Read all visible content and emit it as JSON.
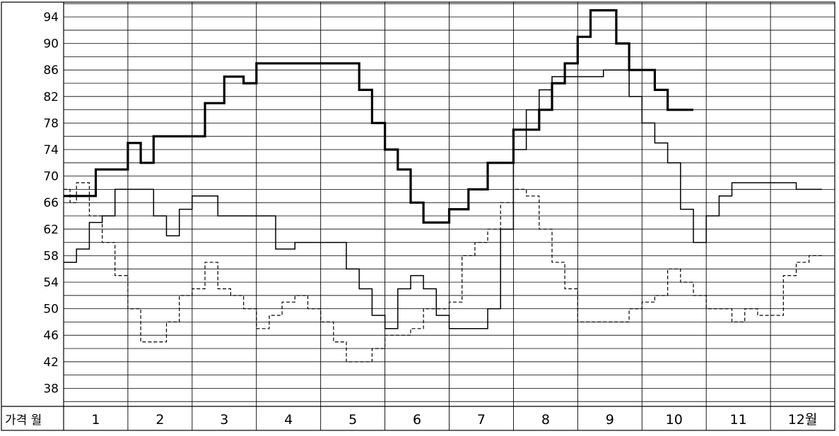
{
  "chart_data": {
    "type": "line",
    "title": "",
    "xlabel": "월",
    "ylabel": "가격",
    "corner_label": "가격 월",
    "categories": [
      "1",
      "2",
      "3",
      "4",
      "5",
      "6",
      "7",
      "8",
      "9",
      "10",
      "11",
      "12월"
    ],
    "ylim": [
      36,
      96
    ],
    "yticks": [
      38,
      42,
      46,
      50,
      54,
      58,
      62,
      66,
      70,
      74,
      78,
      82,
      86,
      90,
      94
    ],
    "grid": true,
    "line_color": "#000000",
    "series": [
      {
        "style": "thick",
        "x": [
          0.0,
          0.2,
          0.5,
          1.0,
          1.2,
          1.4,
          1.7,
          2.0,
          2.2,
          2.5,
          2.8,
          3.0,
          3.2,
          3.4,
          3.6,
          3.9,
          4.2,
          4.5,
          4.6,
          4.8,
          5.0,
          5.2,
          5.4,
          5.6,
          5.8,
          6.0,
          6.3,
          6.6,
          6.8,
          7.0,
          7.2,
          7.4,
          7.6,
          7.8,
          8.0,
          8.2,
          8.4,
          8.6,
          8.8,
          9.0,
          9.2,
          9.4,
          9.6
        ],
        "values": [
          67,
          67,
          71,
          75,
          72,
          76,
          76,
          76,
          81,
          85,
          84,
          87,
          87,
          87,
          87,
          87,
          87,
          87,
          83,
          78,
          74,
          71,
          66,
          63,
          63,
          65,
          68,
          72,
          72,
          77,
          77,
          80,
          84,
          87,
          91,
          95,
          95,
          90,
          86,
          86,
          83,
          80,
          80
        ]
      },
      {
        "style": "thin",
        "x": [
          0.0,
          0.2,
          0.4,
          0.6,
          0.8,
          1.0,
          1.2,
          1.4,
          1.6,
          1.8,
          2.0,
          2.2,
          2.4,
          2.6,
          3.0,
          3.3,
          3.6,
          3.9,
          4.2,
          4.4,
          4.6,
          4.8,
          5.0,
          5.2,
          5.4,
          5.6,
          5.8,
          6.0,
          6.3,
          6.6,
          6.8,
          7.0,
          7.2,
          7.4,
          7.6,
          7.8,
          8.0,
          8.2,
          8.4,
          8.6,
          8.8,
          9.0,
          9.2,
          9.4,
          9.6,
          9.8,
          10.0,
          10.2,
          10.4,
          10.6,
          10.8,
          11.0,
          11.2,
          11.4,
          11.6
        ],
        "values": [
          57,
          59,
          63,
          64,
          68,
          68,
          68,
          64,
          61,
          65,
          67,
          67,
          64,
          64,
          64,
          59,
          60,
          60,
          60,
          56,
          53,
          49,
          47,
          53,
          55,
          53,
          49,
          47,
          47,
          50,
          62,
          74,
          80,
          83,
          85,
          85,
          85,
          85,
          86,
          86,
          82,
          78,
          75,
          72,
          65,
          60,
          64,
          67,
          69,
          69,
          69,
          69,
          69,
          68,
          68
        ]
      },
      {
        "style": "dashed",
        "x": [
          0.0,
          0.1,
          0.2,
          0.4,
          0.6,
          0.8,
          1.0,
          1.2,
          1.4,
          1.6,
          1.8,
          2.0,
          2.2,
          2.4,
          2.6,
          2.8,
          3.0,
          3.2,
          3.4,
          3.6,
          3.8,
          4.0,
          4.2,
          4.4,
          4.6,
          4.8,
          5.0,
          5.2,
          5.4,
          5.6,
          5.8,
          6.0,
          6.2,
          6.4,
          6.6,
          6.8,
          7.0,
          7.2,
          7.4,
          7.6,
          7.8,
          8.0,
          8.2,
          8.4,
          8.6,
          8.8,
          9.0,
          9.2,
          9.4,
          9.6,
          9.8,
          10.0,
          10.2,
          10.4,
          10.6,
          10.8,
          11.0,
          11.2,
          11.4,
          11.6
        ],
        "values": [
          68,
          66,
          69,
          64,
          60,
          55,
          50,
          45,
          45,
          48,
          52,
          53,
          57,
          53,
          52,
          50,
          47,
          49,
          51,
          52,
          50,
          48,
          45,
          42,
          42,
          44,
          46,
          46,
          47,
          50,
          50,
          51,
          58,
          60,
          62,
          66,
          68,
          67,
          62,
          57,
          53,
          48,
          48,
          48,
          48,
          50,
          51,
          52,
          56,
          54,
          52,
          50,
          50,
          48,
          50,
          49,
          49,
          55,
          57,
          58
        ]
      }
    ]
  }
}
